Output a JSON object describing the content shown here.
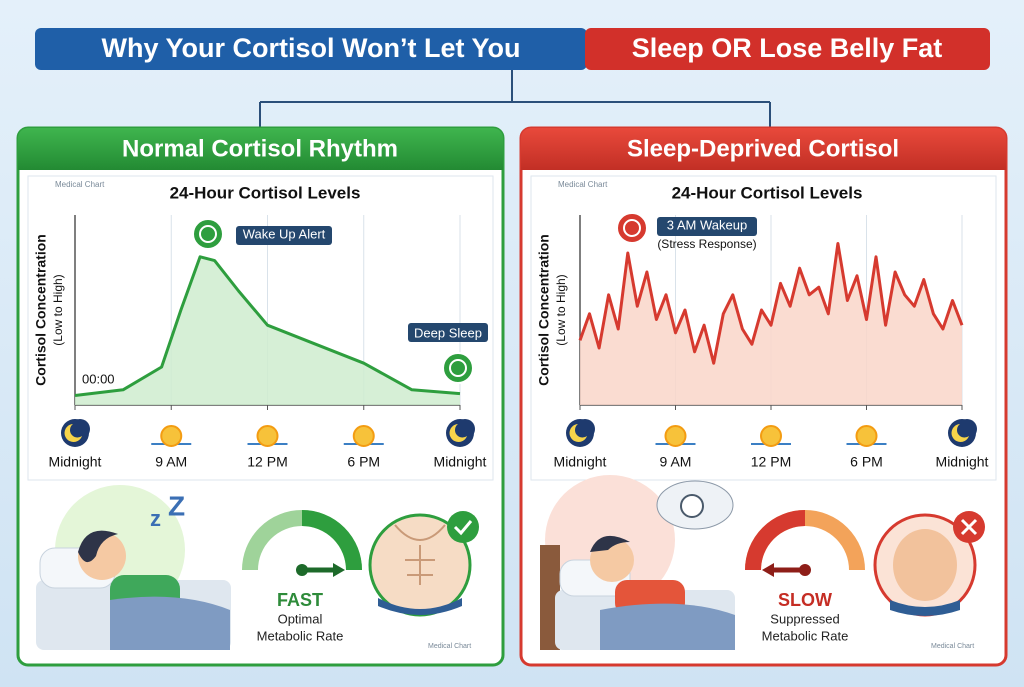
{
  "header": {
    "title_left": "Why Your Cortisol Won’t Let You",
    "title_right": "Sleep OR Lose Belly Fat"
  },
  "panels": [
    {
      "title": "Normal Cortisol Rhythm",
      "badge": "Medical Chart",
      "footer_badge": "Medical Chart",
      "speed": "FAST",
      "rate_line1": "Optimal",
      "rate_line2": "Metabolic Rate"
    },
    {
      "title": "Sleep-Deprived Cortisol",
      "badge": "Medical Chart",
      "footer_badge": "Medical Chart",
      "speed": "SLOW",
      "rate_line1": "Suppressed",
      "rate_line2": "Metabolic Rate"
    }
  ],
  "chart_data": [
    {
      "type": "line",
      "title": "24-Hour Cortisol Levels",
      "y_label": "Cortisol Concentration",
      "y_label_sub": "(Low to High)",
      "color": "#2e9e3e",
      "fill": "#cfeccf",
      "grid": true,
      "xlim": [
        0,
        4
      ],
      "ylim": [
        0,
        100
      ],
      "xticks": [
        {
          "value": 0,
          "label": "Midnight"
        },
        {
          "value": 1,
          "label": "9 AM"
        },
        {
          "value": 2,
          "label": "12 PM"
        },
        {
          "value": 3,
          "label": "6 PM"
        },
        {
          "value": 4,
          "label": "Midnight"
        }
      ],
      "x": [
        0,
        0.5,
        0.9,
        1.1,
        1.3,
        1.45,
        1.7,
        2,
        2.5,
        3,
        3.5,
        4
      ],
      "values": [
        5,
        8,
        20,
        50,
        78,
        76,
        60,
        42,
        32,
        22,
        8,
        6
      ],
      "annotations": [
        "Wake Up Alert",
        "Deep Sleep",
        "00:00"
      ]
    },
    {
      "type": "line",
      "title": "24-Hour Cortisol Levels",
      "y_label": "Cortisol Concentration",
      "y_label_sub": "(Low to High)",
      "color": "#d63a2f",
      "fill": "#f9d6c9",
      "grid": true,
      "xlim": [
        0,
        4
      ],
      "ylim": [
        0,
        100
      ],
      "xticks": [
        {
          "value": 0,
          "label": "Midnight"
        },
        {
          "value": 1,
          "label": "9 AM"
        },
        {
          "value": 2,
          "label": "12 PM"
        },
        {
          "value": 3,
          "label": "6 PM"
        },
        {
          "value": 4,
          "label": "Midnight"
        }
      ],
      "x": [
        0,
        0.1,
        0.2,
        0.3,
        0.4,
        0.5,
        0.6,
        0.7,
        0.8,
        0.9,
        1,
        1.1,
        1.2,
        1.3,
        1.4,
        1.5,
        1.6,
        1.7,
        1.8,
        1.9,
        2,
        2.1,
        2.2,
        2.3,
        2.4,
        2.5,
        2.6,
        2.7,
        2.8,
        2.9,
        3,
        3.1,
        3.2,
        3.3,
        3.4,
        3.5,
        3.6,
        3.7,
        3.8,
        3.9,
        4
      ],
      "values": [
        34,
        48,
        30,
        58,
        40,
        80,
        52,
        70,
        45,
        58,
        38,
        50,
        28,
        42,
        22,
        48,
        58,
        40,
        32,
        50,
        42,
        64,
        52,
        72,
        58,
        62,
        48,
        85,
        55,
        68,
        45,
        78,
        42,
        70,
        58,
        52,
        66,
        48,
        40,
        55,
        42
      ],
      "annotations": [
        "3 AM Wakeup",
        "(Stress Response)"
      ]
    }
  ]
}
